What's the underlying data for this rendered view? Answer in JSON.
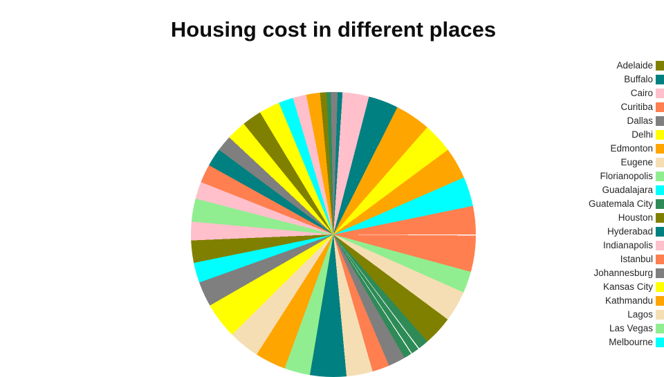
{
  "palette": {
    "olive": "#808000",
    "teal": "#008080",
    "pink": "#ffc0cb",
    "coral": "#ff7f50",
    "gray": "#7f7f7f",
    "yellow": "#ffff00",
    "orange": "#ffa500",
    "wheat": "#f5deb3",
    "lightgreen": "#90ee90",
    "cyan": "#00ffff",
    "seagreen": "#2e8b57"
  },
  "chart_data": {
    "type": "pie",
    "title": "Housing cost in different places",
    "legend_position": "right",
    "pie_start": "12-oclock",
    "pie_direction": "clockwise",
    "legend_entries": [
      {
        "label": "Adelaide",
        "color": "olive"
      },
      {
        "label": "Buffalo",
        "color": "teal"
      },
      {
        "label": "Cairo",
        "color": "pink"
      },
      {
        "label": "Curitiba",
        "color": "coral"
      },
      {
        "label": "Dallas",
        "color": "gray"
      },
      {
        "label": "Delhi",
        "color": "yellow"
      },
      {
        "label": "Edmonton",
        "color": "orange"
      },
      {
        "label": "Eugene",
        "color": "wheat"
      },
      {
        "label": "Florianopolis",
        "color": "lightgreen"
      },
      {
        "label": "Guadalajara",
        "color": "cyan"
      },
      {
        "label": "Guatemala City",
        "color": "seagreen"
      },
      {
        "label": "Houston",
        "color": "olive"
      },
      {
        "label": "Hyderabad",
        "color": "teal"
      },
      {
        "label": "Indianapolis",
        "color": "pink"
      },
      {
        "label": "Istanbul",
        "color": "coral"
      },
      {
        "label": "Johannesburg",
        "color": "gray"
      },
      {
        "label": "Kansas City",
        "color": "yellow"
      },
      {
        "label": "Kathmandu",
        "color": "orange"
      },
      {
        "label": "Lagos",
        "color": "wheat"
      },
      {
        "label": "Las Vegas",
        "color": "lightgreen"
      },
      {
        "label": "Melbourne",
        "color": "cyan"
      }
    ],
    "wedges": [
      {
        "color": "gray",
        "deg": 1.7
      },
      {
        "color": "teal",
        "deg": 2.0
      },
      {
        "color": "pink",
        "deg": 10.8
      },
      {
        "color": "teal",
        "deg": 12.2
      },
      {
        "color": "orange",
        "deg": 14.5
      },
      {
        "color": "yellow",
        "deg": 12.3
      },
      {
        "color": "orange",
        "deg": 12.9
      },
      {
        "color": "cyan",
        "deg": 12.0
      },
      {
        "color": "coral",
        "deg": 11.6
      },
      {
        "color": "coral",
        "deg": 15.2
      },
      {
        "color": "lightgreen",
        "deg": 8.8
      },
      {
        "color": "wheat",
        "deg": 12.6
      },
      {
        "color": "olive",
        "deg": 12.1
      },
      {
        "color": "seagreen",
        "deg": 4.3
      },
      {
        "color": "seagreen",
        "deg": 3.5
      },
      {
        "color": "seagreen",
        "deg": 3.5
      },
      {
        "color": "gray",
        "deg": 7.0
      },
      {
        "color": "coral",
        "deg": 7.0
      },
      {
        "color": "wheat",
        "deg": 10.7
      },
      {
        "color": "teal",
        "deg": 14.8
      },
      {
        "color": "lightgreen",
        "deg": 10.5
      },
      {
        "color": "orange",
        "deg": 12.6
      },
      {
        "color": "wheat",
        "deg": 12.8
      },
      {
        "color": "yellow",
        "deg": 14.7
      },
      {
        "color": "gray",
        "deg": 10.2
      },
      {
        "color": "cyan",
        "deg": 8.2
      },
      {
        "color": "olive",
        "deg": 9.1
      },
      {
        "color": "pink",
        "deg": 7.6
      },
      {
        "color": "lightgreen",
        "deg": 9.4
      },
      {
        "color": "pink",
        "deg": 7.0
      },
      {
        "color": "coral",
        "deg": 7.5
      },
      {
        "color": "teal",
        "deg": 7.4
      },
      {
        "color": "gray",
        "deg": 6.5
      },
      {
        "color": "yellow",
        "deg": 8.0
      },
      {
        "color": "olive",
        "deg": 8.0
      },
      {
        "color": "yellow",
        "deg": 8.5
      },
      {
        "color": "cyan",
        "deg": 6.0
      },
      {
        "color": "pink",
        "deg": 5.5
      },
      {
        "color": "orange",
        "deg": 5.6
      },
      {
        "color": "olive",
        "deg": 2.6
      },
      {
        "color": "seagreen",
        "deg": 1.8
      },
      {
        "color": "gray",
        "deg": 1.0
      }
    ]
  }
}
